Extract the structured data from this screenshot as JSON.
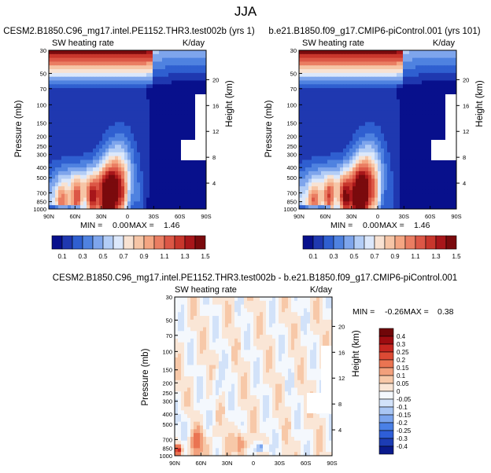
{
  "page_title": "JJA",
  "colors": {
    "abs_scale": [
      "#08108c",
      "#1f38b0",
      "#2f5fd0",
      "#4f82e0",
      "#7ea5ec",
      "#b3cdf6",
      "#dce8fb",
      "#f8e2d2",
      "#f6c5a6",
      "#f4a582",
      "#ea7d62",
      "#dc5746",
      "#c8362c",
      "#a8161a",
      "#7a0a0d"
    ],
    "diff_scale": [
      "#0a1a8c",
      "#1c3cb4",
      "#2e5ed8",
      "#4a80e6",
      "#7aa4ee",
      "#a9c6f4",
      "#d2e2f9",
      "#f4f8fd",
      "#fae6d6",
      "#f7c8a8",
      "#f2a07c",
      "#ea7452",
      "#dc4a34",
      "#c62620",
      "#9e0c10",
      "#700608"
    ]
  },
  "chart_data": [
    {
      "type": "heatmap",
      "title": "CESM2.B1850.C96_mg17.intel.PE1152.THR3.test002b (yrs 1)",
      "left_string": "SW heating rate",
      "right_string": "K/day",
      "ylabel": "Pressure (mb)",
      "ylabel_right": "Height (km)",
      "x_ticklabels": [
        "90N",
        "60N",
        "30N",
        "0",
        "30S",
        "60S",
        "90S"
      ],
      "y_ticklabels": [
        "30",
        "50",
        "70",
        "100",
        "150",
        "200",
        "250",
        "300",
        "400",
        "500",
        "700",
        "850",
        "1000"
      ],
      "y2_ticklabels": [
        "20",
        "16",
        "12",
        "8",
        "4"
      ],
      "x_range": [
        90,
        -90
      ],
      "y_range": [
        30,
        1000
      ],
      "min_label": "MIN =",
      "min_value": "0.00",
      "max_label": "MAX =",
      "max_value": "1.46"
    },
    {
      "type": "heatmap",
      "title": "b.e21.B1850.f09_g17.CMIP6-piControl.001 (yrs 101)",
      "left_string": "SW heating rate",
      "right_string": "K/day",
      "ylabel": "Pressure (mb)",
      "ylabel_right": "Height (km)",
      "x_ticklabels": [
        "90N",
        "60N",
        "30N",
        "0",
        "30S",
        "60S",
        "90S"
      ],
      "y_ticklabels": [
        "30",
        "50",
        "70",
        "100",
        "150",
        "200",
        "250",
        "300",
        "400",
        "500",
        "700",
        "850",
        "1000"
      ],
      "y2_ticklabels": [
        "20",
        "16",
        "12",
        "8",
        "4"
      ],
      "x_range": [
        90,
        -90
      ],
      "y_range": [
        30,
        1000
      ],
      "min_label": "MIN =",
      "min_value": "0.00",
      "max_label": "MAX =",
      "max_value": "1.46"
    },
    {
      "type": "heatmap",
      "title": "CESM2.B1850.C96_mg17.intel.PE1152.THR3.test002b - b.e21.B1850.f09_g17.CMIP6-piControl.001",
      "left_string": "SW heating rate",
      "right_string": "K/day",
      "ylabel": "Pressure (mb)",
      "ylabel_right": "Height (km)",
      "x_ticklabels": [
        "90N",
        "60N",
        "30N",
        "0",
        "30S",
        "60S",
        "90S"
      ],
      "y_ticklabels": [
        "30",
        "50",
        "70",
        "100",
        "150",
        "200",
        "250",
        "300",
        "400",
        "500",
        "700",
        "850",
        "1000"
      ],
      "y2_ticklabels": [
        "20",
        "16",
        "12",
        "8",
        "4"
      ],
      "x_range": [
        90,
        -90
      ],
      "y_range": [
        30,
        1000
      ],
      "min_label": "MIN =",
      "min_value": "-0.26",
      "max_label": "MAX =",
      "max_value": "0.38"
    }
  ],
  "colorbar_abs": {
    "labels": [
      "0.1",
      "0.3",
      "0.5",
      "0.7",
      "0.9",
      "1.1",
      "1.3",
      "1.5"
    ]
  },
  "colorbar_diff": {
    "labels": [
      "0.4",
      "0.3",
      "0.25",
      "0.2",
      "0.15",
      "0.1",
      "0.05",
      "0",
      "-0.05",
      "-0.1",
      "-0.15",
      "-0.2",
      "-0.25",
      "-0.3",
      "-0.4"
    ]
  }
}
